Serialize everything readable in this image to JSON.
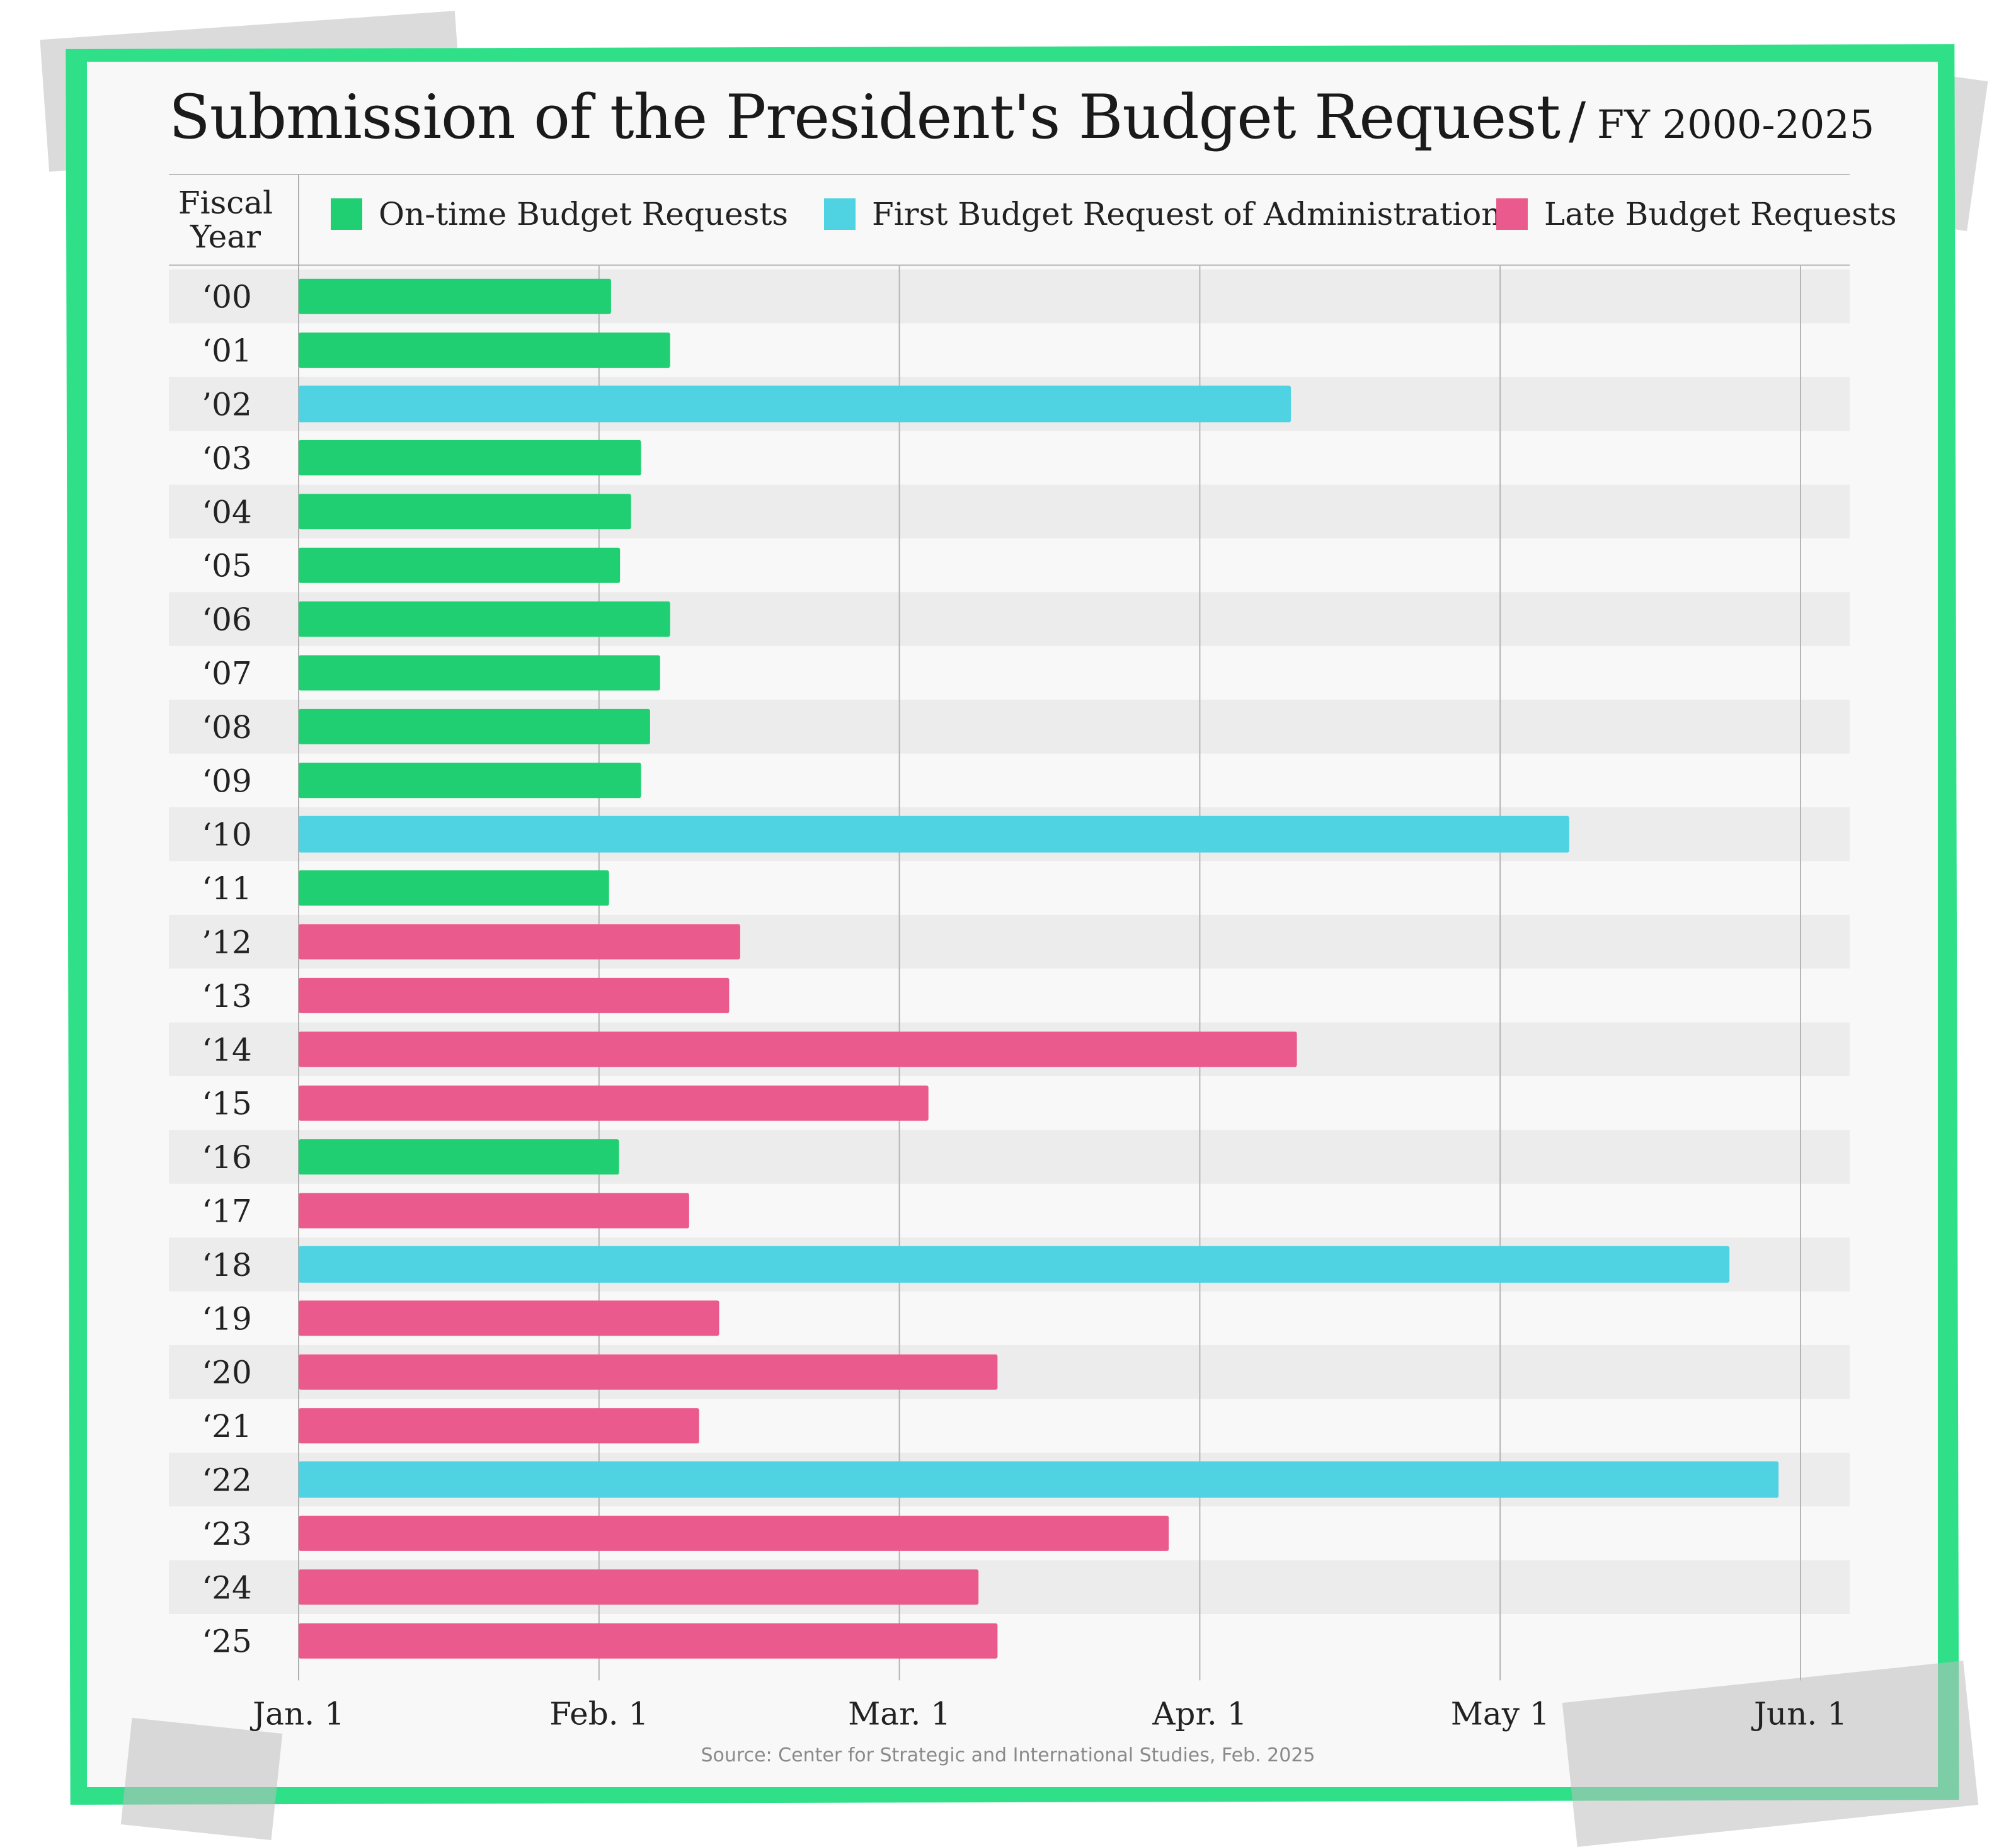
{
  "title": {
    "main": "Submission of the President's Budget Request",
    "separator": "/",
    "subtitle": "FY 2000-2025"
  },
  "fiscal_year_header": "Fiscal Year",
  "source": "Source: Center for Strategic and International Studies, Feb. 2025",
  "colors": {
    "on_time": "#20cf71",
    "first": "#4fd3e2",
    "late": "#eb5a8c",
    "frame": "#2fe089"
  },
  "legend": [
    {
      "key": "on_time",
      "label": "On-time Budget Requests"
    },
    {
      "key": "first",
      "label": "First Budget Request of Administration"
    },
    {
      "key": "late",
      "label": "Late Budget Requests"
    }
  ],
  "chart_data": {
    "type": "bar",
    "orientation": "horizontal",
    "xlabel": "",
    "ylabel": "Fiscal Year",
    "x_unit": "days after Jan. 1",
    "xlim": [
      0,
      150
    ],
    "x_ticks": [
      {
        "label": "Jan. 1",
        "value": 0
      },
      {
        "label": "Feb. 1",
        "value": 30
      },
      {
        "label": "Mar. 1",
        "value": 60
      },
      {
        "label": "Apr. 1",
        "value": 90
      },
      {
        "label": "May 1",
        "value": 120
      },
      {
        "label": "Jun. 1",
        "value": 150
      }
    ],
    "grid": true,
    "bars": [
      {
        "year": "‘00",
        "value": 31.2,
        "category": "on_time"
      },
      {
        "year": "‘01",
        "value": 37.1,
        "category": "on_time"
      },
      {
        "year": "’02",
        "value": 99.1,
        "category": "first"
      },
      {
        "year": "‘03",
        "value": 34.2,
        "category": "on_time"
      },
      {
        "year": "‘04",
        "value": 33.2,
        "category": "on_time"
      },
      {
        "year": "‘05",
        "value": 32.1,
        "category": "on_time"
      },
      {
        "year": "‘06",
        "value": 37.1,
        "category": "on_time"
      },
      {
        "year": "‘07",
        "value": 36.1,
        "category": "on_time"
      },
      {
        "year": "‘08",
        "value": 35.1,
        "category": "on_time"
      },
      {
        "year": "‘09",
        "value": 34.2,
        "category": "on_time"
      },
      {
        "year": "‘10",
        "value": 126.9,
        "category": "first"
      },
      {
        "year": "‘11",
        "value": 31.0,
        "category": "on_time"
      },
      {
        "year": "’12",
        "value": 44.1,
        "category": "late"
      },
      {
        "year": "‘13",
        "value": 43.0,
        "category": "late"
      },
      {
        "year": "‘14",
        "value": 99.7,
        "category": "late"
      },
      {
        "year": "‘15",
        "value": 62.9,
        "category": "late"
      },
      {
        "year": "‘16",
        "value": 32.0,
        "category": "on_time"
      },
      {
        "year": "‘17",
        "value": 39.0,
        "category": "late"
      },
      {
        "year": "‘18",
        "value": 142.9,
        "category": "first"
      },
      {
        "year": "‘19",
        "value": 42.0,
        "category": "late"
      },
      {
        "year": "‘20",
        "value": 69.8,
        "category": "late"
      },
      {
        "year": "‘21",
        "value": 40.0,
        "category": "late"
      },
      {
        "year": "‘22",
        "value": 147.8,
        "category": "first"
      },
      {
        "year": "‘23",
        "value": 86.9,
        "category": "late"
      },
      {
        "year": "‘24",
        "value": 67.9,
        "category": "late"
      },
      {
        "year": "‘25",
        "value": 69.8,
        "category": "late"
      }
    ]
  }
}
